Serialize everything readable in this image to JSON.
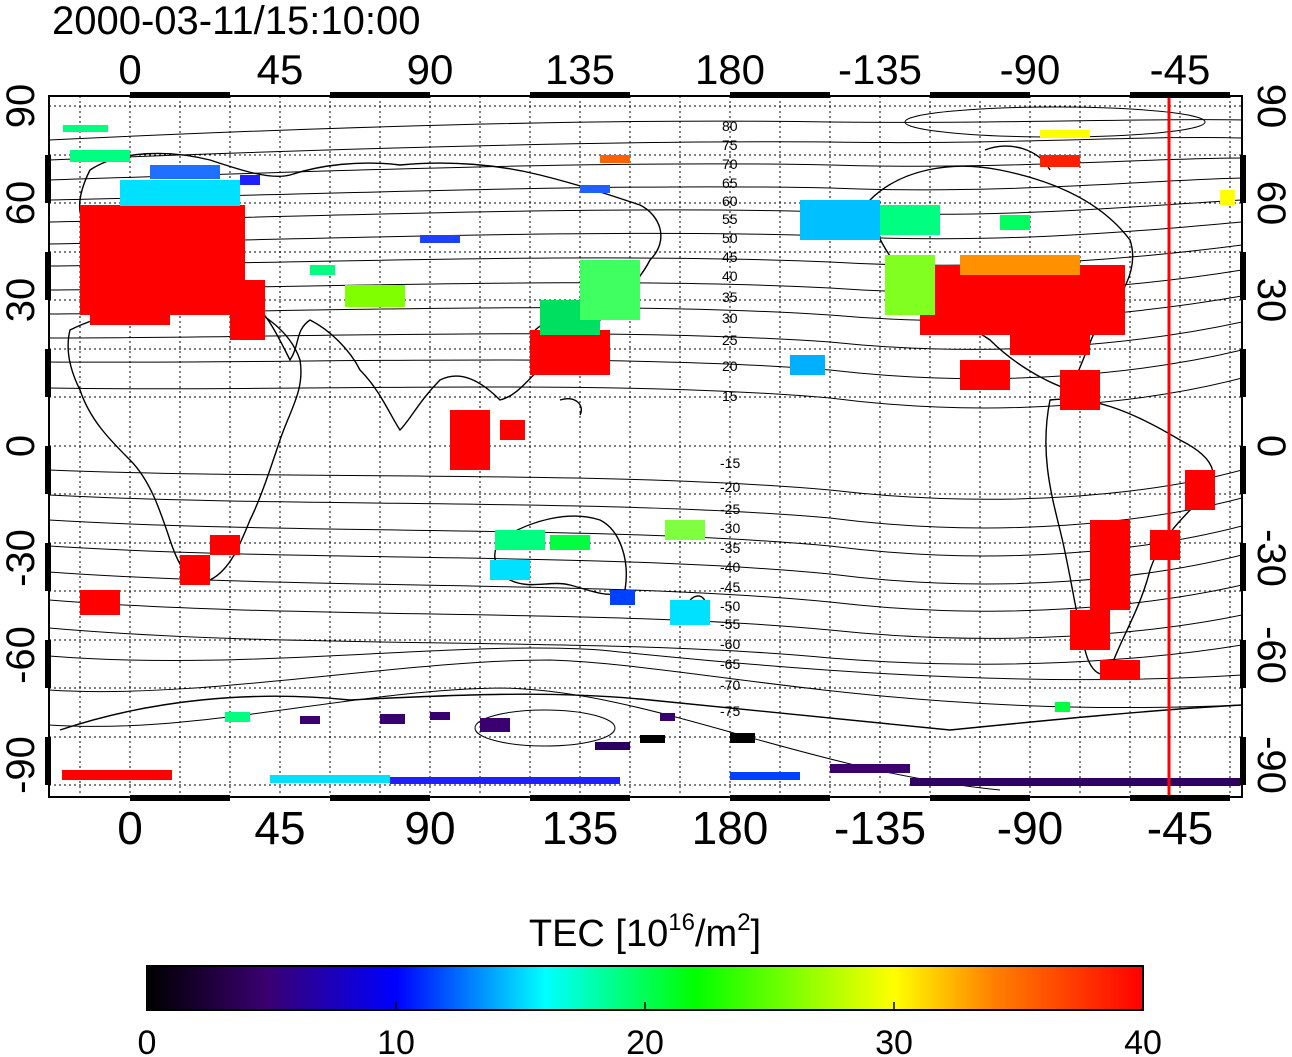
{
  "map": {
    "timestamp": "2000-03-11/15:10:00",
    "projection": "equirectangular",
    "lon_center_deg": 157.5,
    "lon_ticks": [
      "0",
      "45",
      "90",
      "135",
      "180",
      "-135",
      "-90",
      "-45"
    ],
    "lat_ticks": [
      "90",
      "60",
      "30",
      "0",
      "-30",
      "-60",
      "-90"
    ],
    "terminator_longitude_deg": -48,
    "contour_labels_north": [
      "80",
      "75",
      "70",
      "65",
      "60",
      "55",
      "50",
      "45",
      "40",
      "35",
      "30",
      "25",
      "20",
      "15"
    ],
    "contour_labels_south": [
      "-15",
      "-20",
      "-25",
      "-30",
      "-35",
      "-40",
      "-45",
      "-50",
      "-55",
      "-60",
      "-65",
      "-70",
      "-75"
    ]
  },
  "colorbar": {
    "title_prefix": "TEC  [10",
    "title_exp1": "16",
    "title_mid": "/m",
    "title_exp2": "2",
    "title_suffix": "]",
    "tick_labels": [
      "0",
      "10",
      "20",
      "30",
      "40"
    ],
    "min": 0,
    "max": 40,
    "colors": [
      "#000000",
      "#3a0070",
      "#0000ff",
      "#00ffff",
      "#00ff00",
      "#ffff00",
      "#ff8000",
      "#ff0000"
    ]
  }
}
